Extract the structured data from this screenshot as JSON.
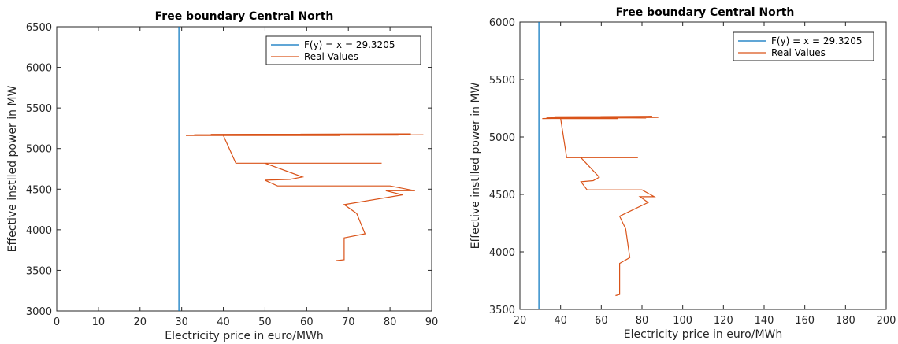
{
  "chart_data": [
    {
      "type": "line",
      "title": "Free boundary Central North",
      "xlabel": "Electricity price in euro/MWh",
      "ylabel": "Effective instlled power in MW",
      "xlim": [
        0,
        90
      ],
      "ylim": [
        3000,
        6500
      ],
      "xticks": [
        0,
        10,
        20,
        30,
        40,
        50,
        60,
        70,
        80,
        90
      ],
      "yticks": [
        3000,
        3500,
        4000,
        4500,
        5000,
        5500,
        6000,
        6500
      ],
      "grid": false,
      "legend_position": "top-right",
      "series": [
        {
          "name": "F(y) = x = 29.3205",
          "color": "#0072BD",
          "x": [
            29.3205,
            29.3205
          ],
          "y": [
            3000,
            6500
          ]
        },
        {
          "name": "Real Values",
          "color": "#D95319",
          "x": [
            88,
            31,
            85,
            37,
            82,
            33,
            68,
            40,
            43,
            78,
            50,
            59,
            56,
            50,
            53,
            80,
            86,
            79,
            83,
            69,
            72,
            74,
            69,
            69,
            67
          ],
          "y": [
            5170,
            5160,
            5180,
            5175,
            5165,
            5170,
            5160,
            5160,
            4820,
            4820,
            4820,
            4650,
            4620,
            4610,
            4540,
            4540,
            4480,
            4480,
            4430,
            4310,
            4200,
            3950,
            3900,
            3630,
            3620
          ]
        }
      ]
    },
    {
      "type": "line",
      "title": "Free boundary Central North",
      "xlabel": "Electricity price in euro/MWh",
      "ylabel": "Effective instlled power in MW",
      "xlim": [
        20,
        200
      ],
      "ylim": [
        3500,
        6000
      ],
      "xticks": [
        20,
        40,
        60,
        80,
        100,
        120,
        140,
        160,
        180,
        200
      ],
      "yticks": [
        3500,
        4000,
        4500,
        5000,
        5500,
        6000
      ],
      "grid": false,
      "legend_position": "top-right",
      "series": [
        {
          "name": "F(y) = x = 29.3205",
          "color": "#0072BD",
          "x": [
            29.3205,
            29.3205
          ],
          "y": [
            3500,
            6000
          ]
        },
        {
          "name": "Real Values",
          "color": "#D95319",
          "x": [
            88,
            31,
            85,
            37,
            82,
            33,
            68,
            40,
            43,
            78,
            50,
            59,
            56,
            50,
            53,
            80,
            86,
            79,
            83,
            69,
            72,
            74,
            69,
            69,
            67
          ],
          "y": [
            5170,
            5160,
            5180,
            5175,
            5165,
            5170,
            5160,
            5160,
            4820,
            4820,
            4820,
            4650,
            4620,
            4610,
            4540,
            4540,
            4480,
            4480,
            4430,
            4310,
            4200,
            3950,
            3900,
            3630,
            3620
          ]
        }
      ]
    }
  ]
}
